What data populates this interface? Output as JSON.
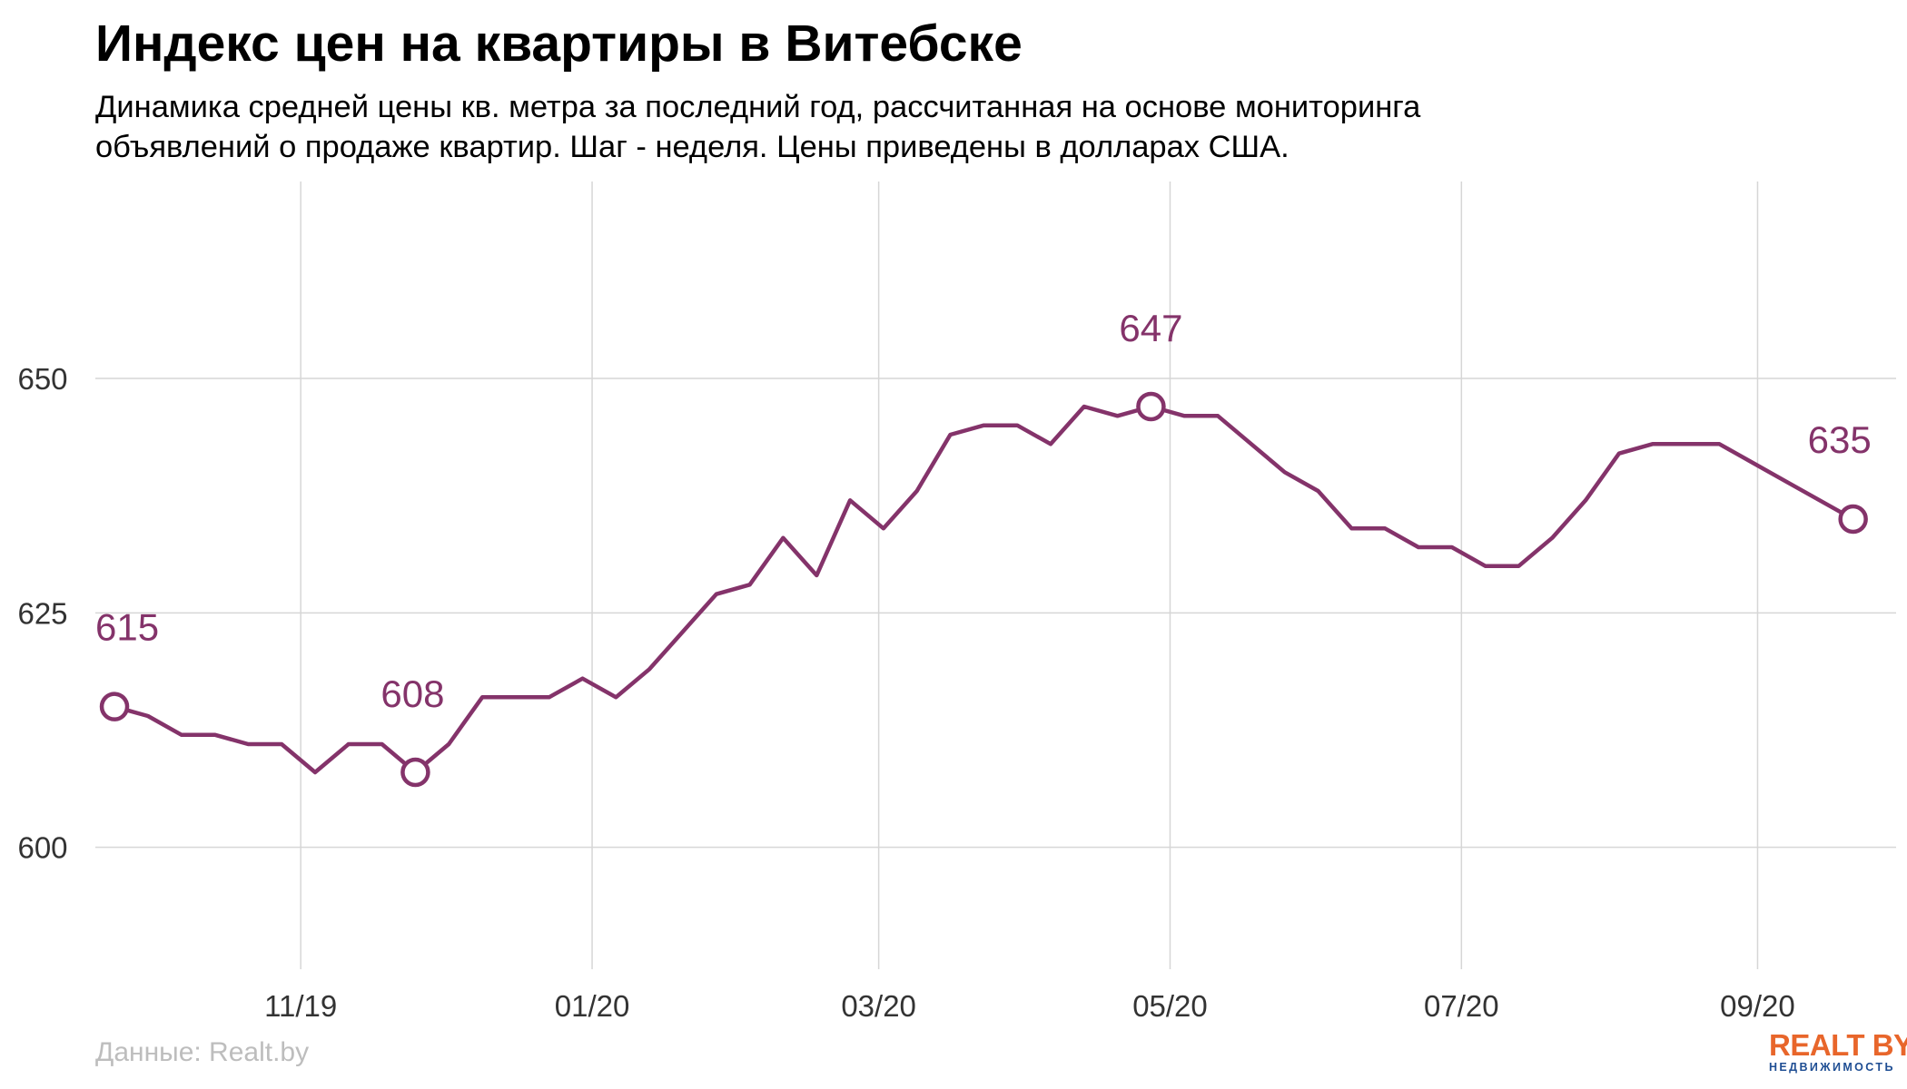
{
  "title": "Индекс цен на квартиры в Витебске",
  "subtitle_lines": [
    "Динамика средней цены кв. метра за последний год, рассчитанная на основе мониторинга",
    "объявлений о продаже квартир. Шаг - неделя. Цены приведены в долларах США."
  ],
  "source": "Данные: Realt.by",
  "logo": {
    "name": "REALT BY",
    "tagline": "недвижимость"
  },
  "colors": {
    "line": "#84336a",
    "label": "#84336a",
    "grid": "#d6d6d6",
    "source": "#bdbdbd",
    "logo_orange": "#e8662b",
    "logo_blue": "#1f4e93"
  },
  "chart_data": {
    "type": "line",
    "title": "Индекс цен на квартиры в Витебске",
    "xlabel": "",
    "ylabel": "",
    "unit": "USD per m²",
    "step": "week",
    "x": [
      "2019-09-23",
      "2019-09-30",
      "2019-10-07",
      "2019-10-14",
      "2019-10-21",
      "2019-10-28",
      "2019-11-04",
      "2019-11-11",
      "2019-11-18",
      "2019-11-25",
      "2019-12-02",
      "2019-12-09",
      "2019-12-16",
      "2019-12-23",
      "2019-12-30",
      "2020-01-06",
      "2020-01-13",
      "2020-01-20",
      "2020-01-27",
      "2020-02-03",
      "2020-02-10",
      "2020-02-17",
      "2020-02-24",
      "2020-03-02",
      "2020-03-09",
      "2020-03-16",
      "2020-03-23",
      "2020-03-30",
      "2020-04-06",
      "2020-04-13",
      "2020-04-20",
      "2020-04-27",
      "2020-05-04",
      "2020-05-11",
      "2020-05-18",
      "2020-05-25",
      "2020-06-01",
      "2020-06-08",
      "2020-06-15",
      "2020-06-22",
      "2020-06-29",
      "2020-07-06",
      "2020-07-13",
      "2020-07-20",
      "2020-07-27",
      "2020-08-03",
      "2020-08-10",
      "2020-08-17",
      "2020-08-24",
      "2020-08-31",
      "2020-09-07",
      "2020-09-14",
      "2020-09-21"
    ],
    "values": [
      615,
      614,
      612,
      612,
      611,
      611,
      608,
      611,
      611,
      608,
      611,
      616,
      616,
      616,
      618,
      616,
      619,
      623,
      627,
      628,
      633,
      629,
      637,
      634,
      638,
      644,
      645,
      645,
      643,
      647,
      646,
      647,
      646,
      646,
      643,
      640,
      638,
      634,
      634,
      632,
      632,
      630,
      630,
      633,
      637,
      642,
      643,
      643,
      643,
      641,
      639,
      637,
      635
    ],
    "highlighted_points": [
      {
        "x": "2019-09-23",
        "value": 615,
        "label": "615"
      },
      {
        "x": "2019-11-25",
        "value": 608,
        "label": "608"
      },
      {
        "x": "2020-04-27",
        "value": 647,
        "label": "647"
      },
      {
        "x": "2020-09-21",
        "value": 635,
        "label": "635"
      }
    ],
    "ylim": [
      587,
      671
    ],
    "y_ticks": [
      600,
      625,
      650
    ],
    "x_ticks": [
      {
        "date": "2019-11-01",
        "label": "11/19"
      },
      {
        "date": "2020-01-01",
        "label": "01/20"
      },
      {
        "date": "2020-03-01",
        "label": "03/20"
      },
      {
        "date": "2020-05-01",
        "label": "05/20"
      },
      {
        "date": "2020-07-01",
        "label": "07/20"
      },
      {
        "date": "2020-09-01",
        "label": "09/20"
      }
    ],
    "xlim": [
      "2019-09-19",
      "2020-09-30"
    ],
    "grid": true,
    "legend": "none"
  }
}
